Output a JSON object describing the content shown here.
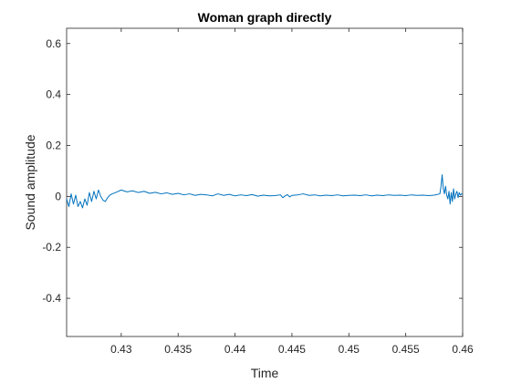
{
  "chart_data": {
    "type": "line",
    "title": "Woman graph directly",
    "xlabel": "Time",
    "ylabel": "Sound amplitude",
    "xlim": [
      0.4252,
      0.46
    ],
    "ylim": [
      -0.55,
      0.66
    ],
    "xticks": [
      0.43,
      0.435,
      0.44,
      0.445,
      0.45,
      0.455,
      0.46
    ],
    "xtick_labels": [
      "0.43",
      "0.435",
      "0.44",
      "0.445",
      "0.45",
      "0.455",
      "0.46"
    ],
    "yticks": [
      -0.4,
      -0.2,
      0,
      0.2,
      0.4,
      0.6
    ],
    "ytick_labels": [
      "-0.4",
      "-0.2",
      "0",
      "0.2",
      "0.4",
      "0.6"
    ],
    "grid": false,
    "color": "#0072bd",
    "series": [
      {
        "name": "Sound amplitude",
        "x": [
          0.4252,
          0.4254,
          0.4256,
          0.4258,
          0.426,
          0.4262,
          0.4264,
          0.4266,
          0.4268,
          0.427,
          0.4272,
          0.4274,
          0.4276,
          0.4278,
          0.428,
          0.4282,
          0.4284,
          0.4286,
          0.4288,
          0.429,
          0.4292,
          0.4295,
          0.43,
          0.4305,
          0.431,
          0.4315,
          0.432,
          0.4325,
          0.433,
          0.4335,
          0.434,
          0.4345,
          0.435,
          0.4355,
          0.436,
          0.4365,
          0.437,
          0.4375,
          0.438,
          0.4385,
          0.439,
          0.4395,
          0.44,
          0.4405,
          0.441,
          0.4415,
          0.442,
          0.4425,
          0.443,
          0.4435,
          0.444,
          0.4442,
          0.4444,
          0.4446,
          0.4448,
          0.445,
          0.4455,
          0.446,
          0.4465,
          0.447,
          0.4475,
          0.448,
          0.4485,
          0.449,
          0.4495,
          0.45,
          0.4505,
          0.451,
          0.4515,
          0.452,
          0.4525,
          0.453,
          0.4535,
          0.454,
          0.4545,
          0.455,
          0.4555,
          0.456,
          0.4565,
          0.457,
          0.4575,
          0.458,
          0.4581,
          0.4582,
          0.4583,
          0.4584,
          0.4585,
          0.4586,
          0.4587,
          0.4588,
          0.4589,
          0.459,
          0.4591,
          0.4592,
          0.4593,
          0.4594,
          0.4595,
          0.4596,
          0.4597,
          0.4598,
          0.4599,
          0.46
        ],
        "y": [
          -0.01,
          -0.04,
          0.01,
          -0.03,
          0.005,
          -0.04,
          -0.02,
          -0.045,
          -0.01,
          -0.035,
          0.015,
          -0.02,
          0.02,
          -0.01,
          0.025,
          0.0,
          -0.015,
          -0.02,
          -0.005,
          0.005,
          0.01,
          0.015,
          0.025,
          0.018,
          0.022,
          0.015,
          0.02,
          0.012,
          0.016,
          0.01,
          0.014,
          0.008,
          0.012,
          0.006,
          0.01,
          0.004,
          0.008,
          0.006,
          0.002,
          0.01,
          0.004,
          0.008,
          0.002,
          0.006,
          0.003,
          0.007,
          0.001,
          0.005,
          0.002,
          0.003,
          0.006,
          -0.005,
          0.002,
          0.007,
          -0.002,
          0.004,
          0.006,
          0.01,
          0.004,
          0.006,
          0.002,
          0.005,
          0.003,
          0.006,
          0.002,
          0.004,
          0.005,
          0.003,
          0.006,
          0.002,
          0.005,
          0.003,
          0.006,
          0.004,
          0.005,
          0.003,
          0.006,
          0.004,
          0.005,
          0.003,
          0.005,
          0.01,
          0.04,
          0.085,
          0.03,
          0.01,
          0.04,
          0.005,
          -0.01,
          0.02,
          -0.03,
          0.015,
          -0.02,
          0.03,
          -0.01,
          0.01,
          0.02,
          -0.005,
          0.015,
          0.005,
          0.01,
          0.008
        ]
      }
    ]
  }
}
